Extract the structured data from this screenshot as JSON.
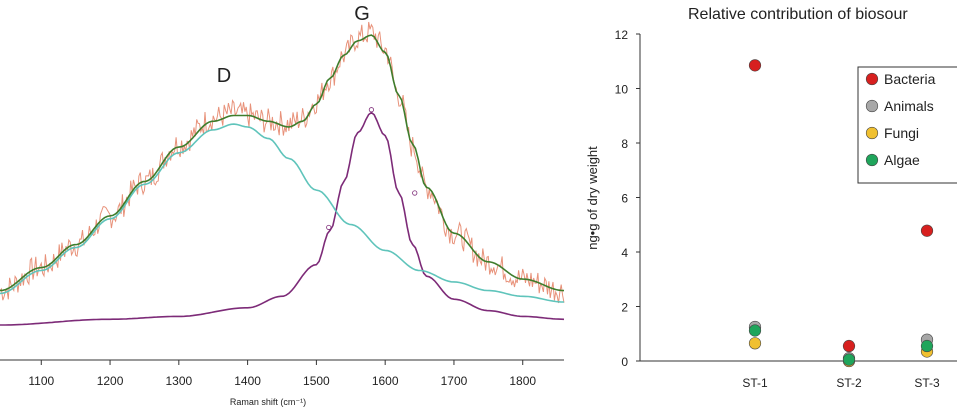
{
  "chart_data": [
    {
      "type": "line",
      "xlabel": "Raman shift (cm⁻¹)",
      "x_ticks": [
        "1100",
        "1200",
        "1300",
        "1400",
        "1500",
        "1600",
        "1700",
        "1800"
      ],
      "xlim": [
        1040,
        1860
      ],
      "annotations": [
        {
          "text": "D",
          "x": 1375
        },
        {
          "text": "G",
          "x": 1580
        }
      ],
      "series": [
        {
          "role": "spectrum",
          "color": "#e8927a",
          "x": [
            1040,
            1100,
            1150,
            1200,
            1250,
            1300,
            1350,
            1380,
            1400,
            1430,
            1460,
            1480,
            1500,
            1520,
            1540,
            1560,
            1580,
            1600,
            1620,
            1640,
            1660,
            1700,
            1750,
            1800,
            1860
          ],
          "y": [
            0.12,
            0.2,
            0.28,
            0.38,
            0.5,
            0.63,
            0.72,
            0.74,
            0.73,
            0.71,
            0.7,
            0.72,
            0.78,
            0.86,
            0.94,
            1.0,
            1.02,
            0.96,
            0.8,
            0.62,
            0.48,
            0.32,
            0.22,
            0.16,
            0.12
          ]
        },
        {
          "role": "fit",
          "color": "#3e7d2c",
          "x": [
            1040,
            1100,
            1150,
            1200,
            1250,
            1300,
            1350,
            1380,
            1400,
            1430,
            1460,
            1480,
            1500,
            1520,
            1540,
            1560,
            1580,
            1600,
            1620,
            1640,
            1660,
            1700,
            1750,
            1800,
            1860
          ],
          "y": [
            0.12,
            0.2,
            0.28,
            0.38,
            0.5,
            0.62,
            0.71,
            0.73,
            0.73,
            0.71,
            0.69,
            0.71,
            0.77,
            0.86,
            0.94,
            0.99,
            1.01,
            0.95,
            0.8,
            0.63,
            0.48,
            0.32,
            0.22,
            0.16,
            0.12
          ]
        },
        {
          "role": "D band",
          "color": "#5fc4bb",
          "x": [
            1040,
            1100,
            1150,
            1200,
            1250,
            1300,
            1350,
            1380,
            1400,
            1430,
            1460,
            1500,
            1550,
            1600,
            1650,
            1700,
            1750,
            1800,
            1860
          ],
          "y": [
            0.11,
            0.19,
            0.27,
            0.37,
            0.49,
            0.6,
            0.68,
            0.7,
            0.69,
            0.65,
            0.58,
            0.47,
            0.35,
            0.26,
            0.19,
            0.15,
            0.12,
            0.1,
            0.08
          ]
        },
        {
          "role": "G band",
          "color": "#7d2b78",
          "x": [
            1040,
            1200,
            1300,
            1400,
            1450,
            1500,
            1520,
            1540,
            1560,
            1580,
            1600,
            1620,
            1640,
            1660,
            1700,
            1750,
            1800,
            1860
          ],
          "y": [
            0.0,
            0.02,
            0.03,
            0.06,
            0.1,
            0.21,
            0.33,
            0.5,
            0.67,
            0.74,
            0.66,
            0.46,
            0.28,
            0.17,
            0.09,
            0.05,
            0.03,
            0.02
          ]
        }
      ]
    },
    {
      "type": "scatter",
      "title": "Relative contribution of biosour",
      "ylabel": "ng•g of dry weight",
      "ylim": [
        0,
        12
      ],
      "y_ticks": [
        "0",
        "2",
        "4",
        "6",
        "8",
        "10",
        "12"
      ],
      "categories": [
        "ST-1",
        "ST-2",
        "ST-3"
      ],
      "legend_position": "top-right",
      "series": [
        {
          "name": "Bacteria",
          "color": "#d7201f",
          "values": [
            10.85,
            0.55,
            4.78
          ]
        },
        {
          "name": "Animals",
          "color": "#a7a7a7",
          "values": [
            1.25,
            0.1,
            0.78
          ]
        },
        {
          "name": "Fungi",
          "color": "#f0c030",
          "values": [
            0.65,
            0.0,
            0.35
          ]
        },
        {
          "name": "Algae",
          "color": "#1fa55b",
          "values": [
            1.12,
            0.05,
            0.55
          ]
        }
      ]
    }
  ]
}
